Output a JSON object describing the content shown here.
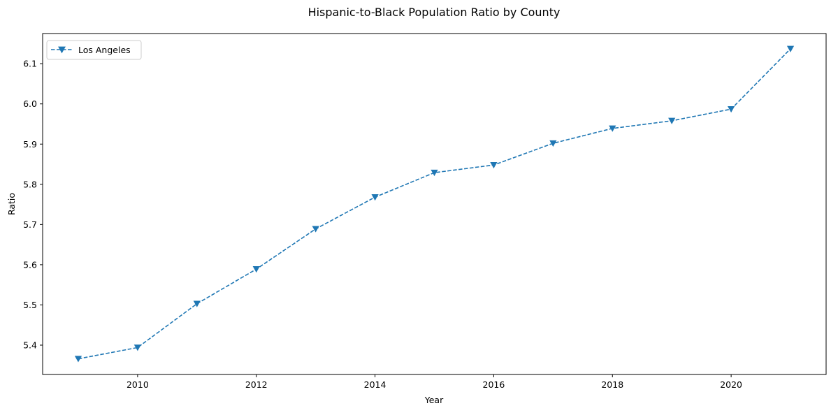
{
  "chart_data": {
    "type": "line",
    "title": "Hispanic-to-Black Population Ratio by County",
    "xlabel": "Year",
    "ylabel": "Ratio",
    "xlim": [
      2008.4,
      2021.6
    ],
    "ylim": [
      5.327,
      6.175
    ],
    "x_ticks": [
      2010,
      2012,
      2014,
      2016,
      2018,
      2020
    ],
    "y_ticks": [
      5.4,
      5.5,
      5.6,
      5.7,
      5.8,
      5.9,
      6.0,
      6.1
    ],
    "x_tick_labels": [
      "2010",
      "2012",
      "2014",
      "2016",
      "2018",
      "2020"
    ],
    "y_tick_labels": [
      "5.4",
      "5.5",
      "5.6",
      "5.7",
      "5.8",
      "5.9",
      "6.0",
      "6.1"
    ],
    "grid": false,
    "legend_position": "top-left",
    "series": [
      {
        "name": "Los Angeles",
        "color": "#1f77b4",
        "line_style": "dashed",
        "marker": "triangle-down",
        "x": [
          2009,
          2010,
          2011,
          2012,
          2013,
          2014,
          2015,
          2016,
          2017,
          2018,
          2019,
          2020,
          2021
        ],
        "y": [
          5.366,
          5.394,
          5.503,
          5.589,
          5.689,
          5.768,
          5.829,
          5.848,
          5.902,
          5.939,
          5.958,
          5.987,
          6.137
        ]
      }
    ]
  }
}
